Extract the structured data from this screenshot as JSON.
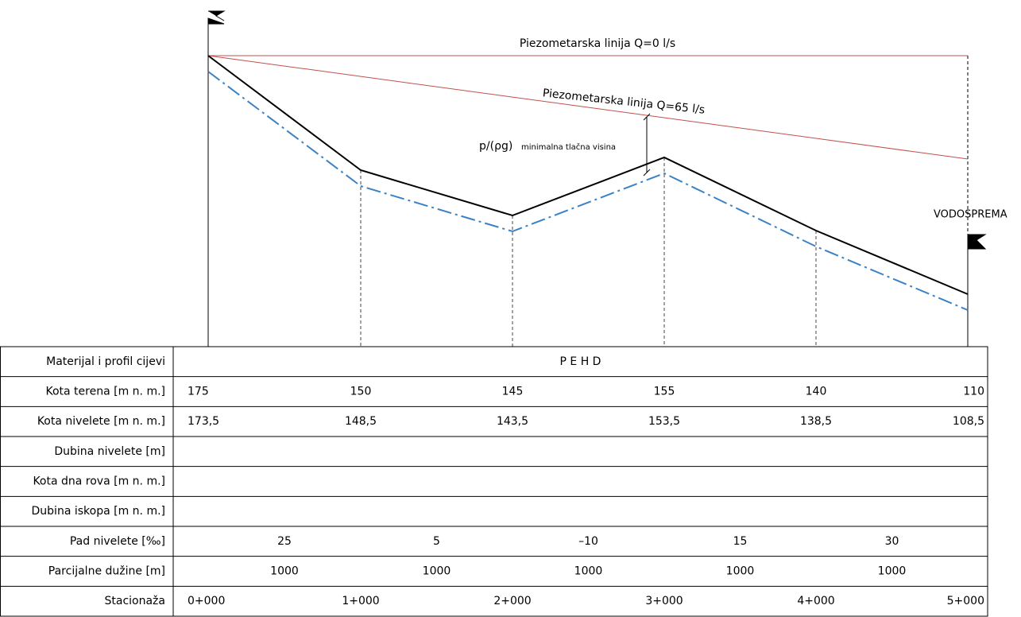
{
  "profile": {
    "static_line": "Piezometarska linija Q=0 l/s",
    "dynamic_line": "Piezometarska linija Q=65 l/s",
    "pressure": "p/(ρg)",
    "pressure_note": "minimalna tlačna visina",
    "reservoir": "VODOSPREMA"
  },
  "table": {
    "rows": [
      [
        "Materijal i profil cijevi",
        "P E H D"
      ],
      [
        "Kota terena [m n. m.]",
        "175",
        "150",
        "145",
        "155",
        "140",
        "110"
      ],
      [
        "Kota nivelete [m n. m.]",
        "173,5",
        "148,5",
        "143,5",
        "153,5",
        "138,5",
        "108,5"
      ],
      [
        "Dubina nivelete [m]"
      ],
      [
        "Kota dna rova [m n. m.]"
      ],
      [
        "Dubina iskopa [m n. m.]"
      ],
      [
        "Pad nivelete [‰]",
        "25",
        "5",
        "–10",
        "15",
        "30"
      ],
      [
        "Parcijalne dužine [m]",
        "1000",
        "1000",
        "1000",
        "1000",
        "1000"
      ],
      [
        "Stacionaža",
        "0+000",
        "1+000",
        "2+000",
        "3+000",
        "4+000",
        "5+000"
      ]
    ]
  }
}
